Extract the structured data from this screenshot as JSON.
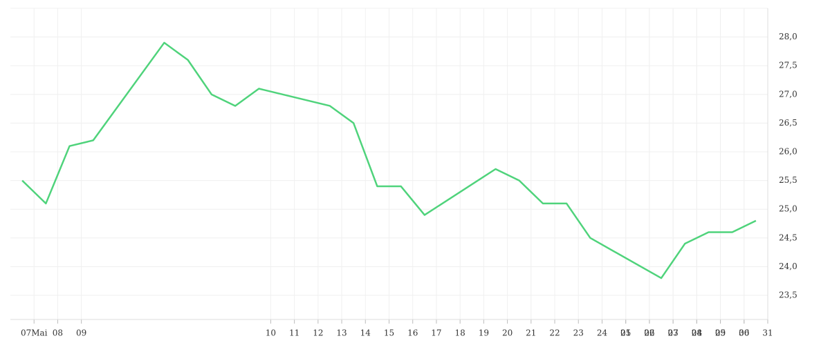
{
  "chart_data": {
    "type": "line",
    "xlim": [
      -1,
      31
    ],
    "xticks": [
      {
        "value": 0,
        "label": "07Mai"
      },
      {
        "value": 1,
        "label": "08"
      },
      {
        "value": 2,
        "label": "09"
      },
      10,
      11,
      12,
      13,
      14,
      15,
      16,
      17,
      18,
      19,
      20,
      21,
      22,
      23,
      24,
      25,
      26,
      27,
      28,
      29,
      30,
      31,
      {
        "value": 25,
        "label": "01"
      },
      {
        "value": 26,
        "label": "02"
      },
      {
        "value": 27,
        "label": "03"
      },
      {
        "value": 28,
        "label": "04"
      },
      {
        "value": 29,
        "label": "05"
      },
      {
        "value": 30,
        "label": "06"
      }
    ],
    "ylim": [
      23.08,
      28.5
    ],
    "yticks": [
      {
        "value": 23.5,
        "label": "23,5"
      },
      {
        "value": 24.0,
        "label": "24,0"
      },
      {
        "value": 24.5,
        "label": "24,5"
      },
      {
        "value": 25.0,
        "label": "25,0"
      },
      {
        "value": 25.5,
        "label": "25,5"
      },
      {
        "value": 26.0,
        "label": "26,0"
      },
      {
        "value": 26.5,
        "label": "26,5"
      },
      {
        "value": 27.0,
        "label": "27,0"
      },
      {
        "value": 27.5,
        "label": "27,5"
      },
      {
        "value": 28.0,
        "label": "28,0"
      }
    ],
    "grid": true,
    "series": [
      {
        "color": "#4fd37b",
        "x": [
          -0.5,
          0.5,
          1.5,
          2.5,
          5.5,
          6.5,
          7.5,
          8.5,
          9.5,
          12.5,
          13.5,
          14.5,
          15.5,
          16.5,
          19.5,
          20.5,
          21.5,
          22.5,
          23.5,
          26.5,
          27.5,
          28.5,
          29.5,
          30.5
        ],
        "values": [
          25.5,
          25.1,
          26.1,
          26.2,
          27.9,
          27.6,
          27.0,
          26.8,
          27.1,
          26.8,
          26.5,
          25.4,
          25.4,
          24.9,
          25.7,
          25.5,
          25.1,
          25.1,
          24.5,
          23.8,
          24.4,
          24.6,
          24.6,
          24.8
        ]
      }
    ]
  }
}
